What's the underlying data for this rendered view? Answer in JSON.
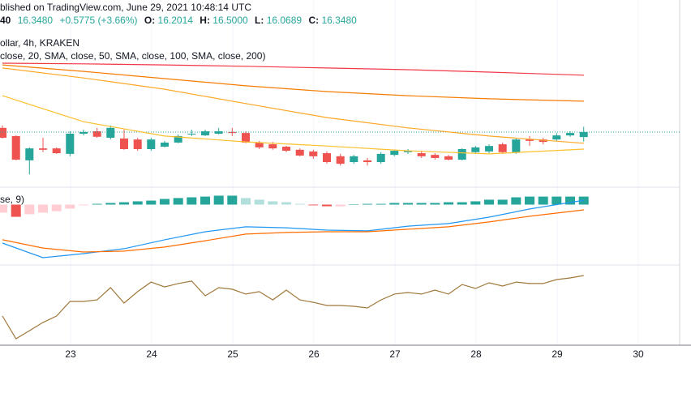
{
  "chart_data": {
    "type": "candlestick",
    "header": {
      "published": "blished on TradingView.com, June 29, 2021 10:48:14 UTC",
      "symbol_tail": "40",
      "last": "16.3480",
      "change": "+0.5775 (+3.66%)",
      "open_label": "O:",
      "open_value": "16.2014",
      "high_label": "H:",
      "high_value": "16.5000",
      "low_label": "L:",
      "low_value": "16.0689",
      "close_label": "C:",
      "close_value": "16.3480",
      "instrument": "ollar, 4h, KRAKEN"
    },
    "up_color": "#26a69a",
    "down_color": "#ef5350",
    "xlim": [
      22.13,
      30.65
    ],
    "xticks": [
      23,
      24,
      25,
      26,
      27,
      28,
      29,
      30
    ],
    "ylim": [
      14.76,
      19.26
    ],
    "x": [
      22.16,
      22.327,
      22.493,
      22.66,
      22.827,
      22.993,
      23.16,
      23.327,
      23.493,
      23.66,
      23.827,
      23.993,
      24.16,
      24.327,
      24.493,
      24.66,
      24.827,
      24.993,
      25.16,
      25.327,
      25.493,
      25.66,
      25.827,
      25.993,
      26.16,
      26.327,
      26.493,
      26.66,
      26.827,
      26.993,
      27.16,
      27.327,
      27.493,
      27.66,
      27.827,
      27.993,
      28.16,
      28.327,
      28.493,
      28.66,
      28.827,
      28.993,
      29.16,
      29.327
    ],
    "open": [
      16.47,
      16.23,
      15.52,
      15.87,
      15.87,
      15.71,
      16.3,
      16.37,
      16.18,
      16.16,
      16.13,
      15.85,
      15.92,
      16.04,
      16.28,
      16.25,
      16.3,
      16.35,
      16.32,
      16.04,
      15.99,
      15.92,
      15.83,
      15.78,
      15.73,
      15.64,
      15.47,
      15.52,
      15.47,
      15.68,
      15.76,
      15.73,
      15.68,
      15.64,
      15.54,
      15.76,
      15.78,
      15.99,
      15.76,
      16.13,
      16.13,
      16.13,
      16.25,
      16.2014
    ],
    "high": [
      16.54,
      16.25,
      15.9,
      16.18,
      15.9,
      16.37,
      16.42,
      16.47,
      16.54,
      16.42,
      16.18,
      16.18,
      16.09,
      16.28,
      16.42,
      16.42,
      16.47,
      16.47,
      16.37,
      16.09,
      16.06,
      15.94,
      15.87,
      15.83,
      15.78,
      15.71,
      15.68,
      15.59,
      15.76,
      15.83,
      15.85,
      15.8,
      15.73,
      15.68,
      15.87,
      15.94,
      15.99,
      16.04,
      16.18,
      16.23,
      16.18,
      16.32,
      16.37,
      16.5
    ],
    "low": [
      16.16,
      15.52,
      15.11,
      15.76,
      15.71,
      15.64,
      16.25,
      16.18,
      16.13,
      15.83,
      15.8,
      15.8,
      15.9,
      16.02,
      16.23,
      16.23,
      16.28,
      16.23,
      16.02,
      15.85,
      15.83,
      15.76,
      15.64,
      15.56,
      15.42,
      15.37,
      15.42,
      15.37,
      15.42,
      15.64,
      15.71,
      15.59,
      15.54,
      15.52,
      15.52,
      15.73,
      15.73,
      15.71,
      15.71,
      15.94,
      15.99,
      16.09,
      16.21,
      16.0689
    ],
    "close": [
      16.18,
      15.54,
      15.87,
      15.83,
      15.73,
      16.3,
      16.35,
      16.21,
      16.47,
      15.85,
      15.85,
      16.13,
      16.04,
      16.23,
      16.3,
      16.37,
      16.37,
      16.32,
      16.04,
      15.9,
      15.87,
      15.8,
      15.66,
      15.64,
      15.47,
      15.42,
      15.64,
      15.47,
      15.71,
      15.8,
      15.8,
      15.64,
      15.59,
      15.54,
      15.85,
      15.9,
      15.94,
      15.76,
      16.13,
      16.09,
      16.06,
      16.25,
      16.32,
      16.348
    ],
    "moving_averages": {
      "label": "close, 20, SMA, close, 50, SMA, close, 100, SMA, close, 200)",
      "x": [
        22.16,
        23.16,
        24.16,
        25.16,
        26.16,
        27.16,
        28.16,
        29.33
      ],
      "series": [
        {
          "color": "#f23645",
          "values": [
            18.36,
            18.34,
            18.31,
            18.27,
            18.22,
            18.17,
            18.1,
            18.01
          ]
        },
        {
          "color": "#f57c00",
          "values": [
            18.31,
            18.12,
            17.91,
            17.7,
            17.53,
            17.41,
            17.32,
            17.25
          ]
        },
        {
          "color": "#ffa726",
          "values": [
            18.22,
            17.93,
            17.6,
            17.18,
            16.77,
            16.47,
            16.23,
            16.02
          ]
        },
        {
          "color": "#fbc02d",
          "values": [
            17.41,
            16.65,
            16.23,
            16.06,
            15.94,
            15.8,
            15.71,
            15.85
          ]
        }
      ]
    },
    "macd": {
      "label": "se, 9)",
      "ylim": [
        -0.3,
        0.1
      ],
      "histogram": {
        "values": [
          -0.044,
          -0.067,
          -0.053,
          -0.044,
          -0.036,
          -0.022,
          -0.004,
          0.004,
          0.009,
          0.013,
          0.018,
          0.022,
          0.031,
          0.036,
          0.04,
          0.044,
          0.049,
          0.049,
          0.036,
          0.027,
          0.018,
          0.013,
          0.004,
          -0.004,
          -0.009,
          -0.009,
          0,
          0.004,
          0.004,
          0.009,
          0.009,
          0.009,
          0.009,
          0.013,
          0.013,
          0.018,
          0.027,
          0.027,
          0.04,
          0.044,
          0.044,
          0.044,
          0.044,
          0.044
        ],
        "colors": {
          "pos_rising": "#26a69a",
          "pos_falling": "#b2dfdb",
          "neg_falling": "#ef5350",
          "neg_rising": "#ffcdd2"
        }
      },
      "x": [
        22.16,
        22.66,
        23.16,
        23.66,
        24.16,
        24.66,
        25.16,
        25.66,
        26.16,
        26.66,
        27.16,
        27.66,
        28.16,
        28.66,
        29.33
      ],
      "series": [
        {
          "color": "#2196f3",
          "values": [
            -0.211,
            -0.291,
            -0.269,
            -0.242,
            -0.193,
            -0.149,
            -0.122,
            -0.127,
            -0.14,
            -0.144,
            -0.118,
            -0.104,
            -0.069,
            -0.024,
            0.024
          ]
        },
        {
          "color": "#ff6d00",
          "values": [
            -0.193,
            -0.238,
            -0.26,
            -0.255,
            -0.233,
            -0.198,
            -0.162,
            -0.153,
            -0.149,
            -0.149,
            -0.135,
            -0.122,
            -0.095,
            -0.064,
            -0.029
          ]
        }
      ]
    },
    "oscillator": {
      "ylim": [
        20,
        80
      ],
      "color": "#a0783a",
      "values": [
        42.1,
        24.4,
        30.7,
        37.1,
        42.1,
        53.5,
        53.5,
        54.7,
        64.2,
        52.2,
        61.1,
        68.6,
        64.8,
        67.4,
        69.3,
        57.9,
        64.2,
        63.0,
        59.2,
        61.1,
        54.7,
        62.3,
        54.7,
        52.8,
        50.3,
        50.3,
        49.7,
        48.4,
        54.7,
        59.2,
        60.4,
        59.2,
        62.3,
        59.2,
        66.7,
        63.6,
        68.0,
        65.5,
        68.6,
        67.4,
        67.4,
        70.5,
        71.8,
        73.7
      ]
    }
  }
}
